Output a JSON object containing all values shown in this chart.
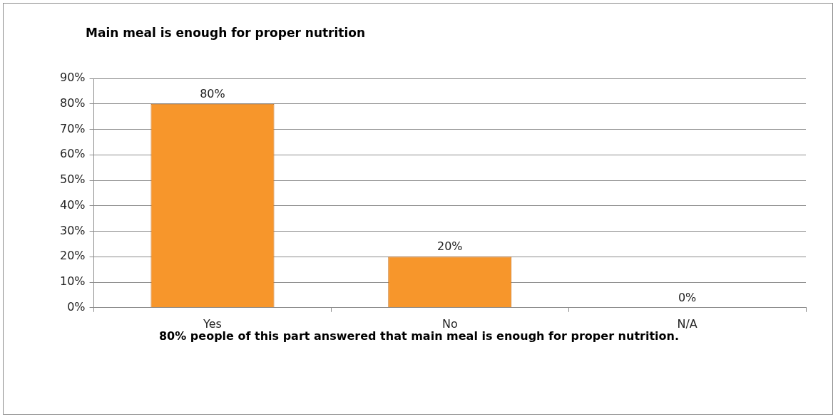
{
  "chart_data": {
    "type": "bar",
    "title": "Main meal is enough for proper nutrition",
    "categories": [
      "Yes",
      "No",
      "N/A"
    ],
    "values": [
      80,
      20,
      0
    ],
    "value_labels": [
      "80%",
      "20%",
      "0%"
    ],
    "color": "#f7962b",
    "ylim": [
      0,
      90
    ],
    "yticks": [
      {
        "value": 0,
        "label": "0%"
      },
      {
        "value": 10,
        "label": "10%"
      },
      {
        "value": 20,
        "label": "20%"
      },
      {
        "value": 30,
        "label": "30%"
      },
      {
        "value": 40,
        "label": "40%"
      },
      {
        "value": 50,
        "label": "50%"
      },
      {
        "value": 60,
        "label": "60%"
      },
      {
        "value": 70,
        "label": "70%"
      },
      {
        "value": 80,
        "label": "80%"
      },
      {
        "value": 90,
        "label": "90%"
      }
    ],
    "grid": "y",
    "legend": false,
    "annotations": [
      "80% people of this part answered that main meal is enough for proper nutrition."
    ]
  }
}
